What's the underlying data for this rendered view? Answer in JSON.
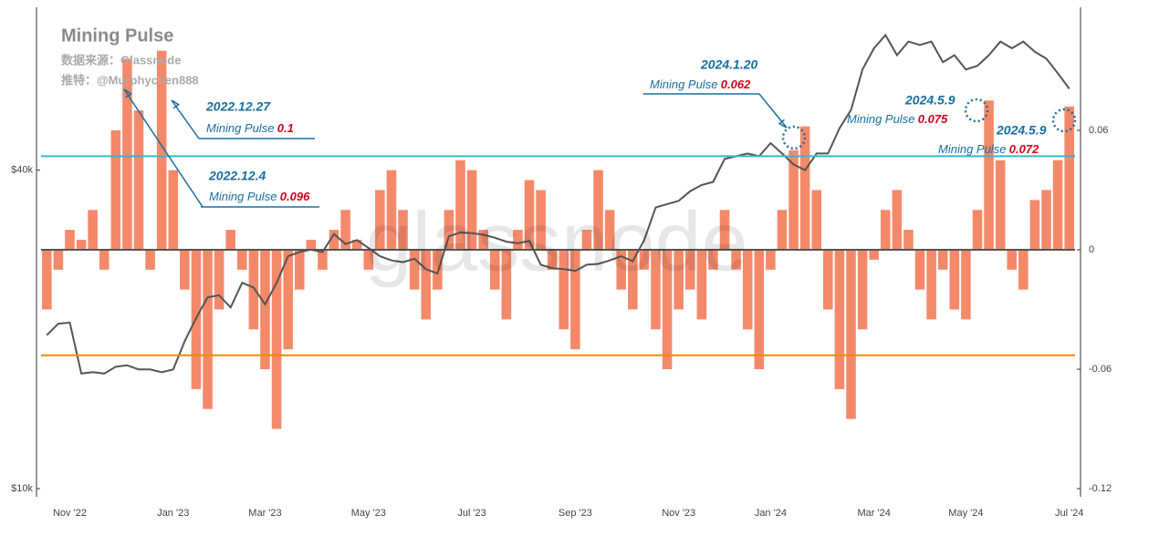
{
  "chart_data": {
    "type": "bar-line",
    "title": "Mining Pulse",
    "source": "数据来源：Glassnode",
    "author": "推特：@Murphychen888",
    "watermark": "glassnode",
    "categories": [
      null,
      null,
      "Nov '22",
      null,
      null,
      null,
      null,
      null,
      null,
      null,
      null,
      "Jan '23",
      null,
      null,
      null,
      null,
      null,
      null,
      null,
      "Mar '23",
      null,
      null,
      null,
      null,
      null,
      null,
      null,
      null,
      "May '23",
      null,
      null,
      null,
      null,
      null,
      null,
      null,
      null,
      "Jul '23",
      null,
      null,
      null,
      null,
      null,
      null,
      null,
      null,
      "Sep '23",
      null,
      null,
      null,
      null,
      null,
      null,
      null,
      null,
      "Nov '23",
      null,
      null,
      null,
      null,
      null,
      null,
      null,
      "Jan '24",
      null,
      null,
      null,
      null,
      null,
      null,
      null,
      null,
      "Mar '24",
      null,
      null,
      null,
      null,
      null,
      null,
      null,
      "May '24",
      null,
      null,
      null,
      null,
      null,
      null,
      null,
      null,
      "Jul '24"
    ],
    "series": [
      {
        "type": "bar",
        "axis": "y2",
        "color": "#f4896a",
        "values": [
          -0.03,
          -0.01,
          0.01,
          0.005,
          0.02,
          -0.01,
          0.06,
          0.096,
          0.07,
          -0.01,
          0.1,
          0.04,
          -0.02,
          -0.07,
          -0.08,
          -0.03,
          0.01,
          -0.01,
          -0.04,
          -0.06,
          -0.09,
          -0.05,
          -0.02,
          0.005,
          -0.01,
          0.01,
          0.02,
          0.005,
          -0.01,
          0.03,
          0.04,
          0.02,
          -0.02,
          -0.035,
          -0.02,
          0.02,
          0.045,
          0.04,
          0.01,
          -0.02,
          -0.035,
          0.01,
          0.035,
          0.03,
          -0.01,
          -0.04,
          -0.05,
          0.01,
          0.04,
          0.02,
          -0.02,
          -0.03,
          -0.01,
          -0.04,
          -0.06,
          -0.03,
          -0.02,
          -0.035,
          -0.01,
          0.02,
          -0.01,
          -0.04,
          -0.06,
          -0.01,
          0.02,
          0.05,
          0.062,
          0.03,
          -0.03,
          -0.07,
          -0.085,
          -0.04,
          -0.005,
          0.02,
          0.03,
          0.01,
          -0.02,
          -0.035,
          -0.01,
          -0.03,
          -0.035,
          0.02,
          0.075,
          0.045,
          -0.01,
          -0.02,
          0.025,
          0.03,
          0.045,
          0.072
        ]
      },
      {
        "type": "line",
        "axis": "y",
        "color": "#555555",
        "values": [
          19500,
          20500,
          20600,
          16500,
          16600,
          16500,
          17000,
          17100,
          16800,
          16800,
          16600,
          16800,
          19000,
          21000,
          23000,
          23200,
          22000,
          24500,
          24000,
          22300,
          24500,
          27500,
          28000,
          28300,
          28000,
          30300,
          29000,
          29500,
          28500,
          27500,
          27000,
          26800,
          27200,
          26000,
          25500,
          30000,
          30500,
          30400,
          30200,
          29800,
          29300,
          29100,
          29400,
          26500,
          26100,
          26000,
          25800,
          26500,
          26600,
          27000,
          27500,
          26900,
          29500,
          34000,
          34500,
          35000,
          36500,
          37500,
          38000,
          42000,
          42500,
          43000,
          42500,
          45000,
          43000,
          41000,
          40000,
          43000,
          43000,
          48000,
          52000,
          62000,
          68000,
          72000,
          66000,
          70000,
          69000,
          70000,
          64000,
          66000,
          62000,
          63000,
          66000,
          70000,
          68000,
          70000,
          67000,
          65000,
          61000,
          57000
        ]
      }
    ],
    "ylim": [
      10000,
      80000
    ],
    "log_y": true,
    "yticks": [
      {
        "value": 10000,
        "label": "$10k"
      },
      {
        "value": 40000,
        "label": "$40k"
      }
    ],
    "y2lim": [
      -0.12,
      0.12
    ],
    "y2ticks": [
      -0.12,
      -0.06,
      0,
      0.06
    ],
    "reference_lines": [
      {
        "value": 0.047,
        "color": "#35b6d6"
      },
      {
        "value": -0.053,
        "color": "#f08a00"
      }
    ],
    "annotations": [
      {
        "date": "2022.12.27",
        "label": "Mining Pulse",
        "value": 0.1
      },
      {
        "date": "2022.12.4",
        "label": "Mining Pulse",
        "value": 0.096
      },
      {
        "date": "2024.1.20",
        "label": "Mining Pulse",
        "value": 0.062
      },
      {
        "date": "2024.5.9",
        "label": "Mining Pulse",
        "value": 0.075
      },
      {
        "date": "2024.5.9",
        "label": "Mining Pulse",
        "value": 0.072
      }
    ]
  }
}
